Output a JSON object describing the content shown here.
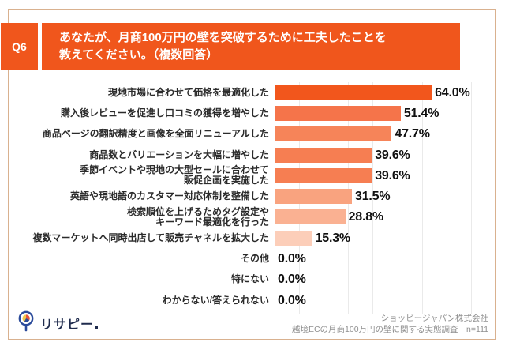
{
  "header": {
    "badge": "Q6",
    "title_lines": [
      "あなたが、月商100万円の壁を突破するために工夫したことを",
      "教えてください。（複数回答）"
    ]
  },
  "chart_data": {
    "type": "bar",
    "orientation": "horizontal",
    "title": "あなたが、月商100万円の壁を突破するために工夫したことを教えてください。（複数回答）",
    "categories": [
      "現地市場に合わせて価格を最適化した",
      "購入後レビューを促進し口コミの獲得を増やした",
      "商品ページの翻訳精度と画像を全面リニューアルした",
      "商品数とバリエーションを大幅に増やした",
      "季節イベントや現地の大型セールに合わせて\n販促企画を実施した",
      "英語や現地語のカスタマー対応体制を整備した",
      "検索順位を上げるためタグ設定や\nキーワード最適化を行った",
      "複数マーケットへ同時出店して販売チャネルを拡大した",
      "その他",
      "特にない",
      "わからない/答えられない"
    ],
    "values": [
      64.0,
      51.4,
      47.7,
      39.6,
      39.6,
      31.5,
      28.8,
      15.3,
      0.0,
      0.0,
      0.0
    ],
    "value_labels": [
      "64.0%",
      "51.4%",
      "47.7%",
      "39.6%",
      "39.6%",
      "31.5%",
      "28.8%",
      "15.3%",
      "0.0%",
      "0.0%",
      "0.0%"
    ],
    "bar_colors": [
      "#f2561c",
      "#f5744a",
      "#f68459",
      "#f67e52",
      "#f67e52",
      "#f9a37f",
      "#fab192",
      "#fcceb9",
      null,
      null,
      null
    ],
    "xlim": [
      0,
      90
    ],
    "gridline_interval": 10,
    "grid": true,
    "legend": false,
    "xlabel": "",
    "ylabel": ""
  },
  "footer": {
    "logo_text": "リサピー",
    "source_line1": "ショッピージャパン株式会社",
    "source_line2": "越境ECの月商100万円の壁に関する実態調査｜n=111"
  },
  "colors": {
    "accent": "#f0561c",
    "card_border": "#d9b18f",
    "grid_line": "#eaeaea",
    "value_text": "#111111",
    "source_text": "#8f8f8f",
    "logo_navy": "#1f2b4d"
  }
}
